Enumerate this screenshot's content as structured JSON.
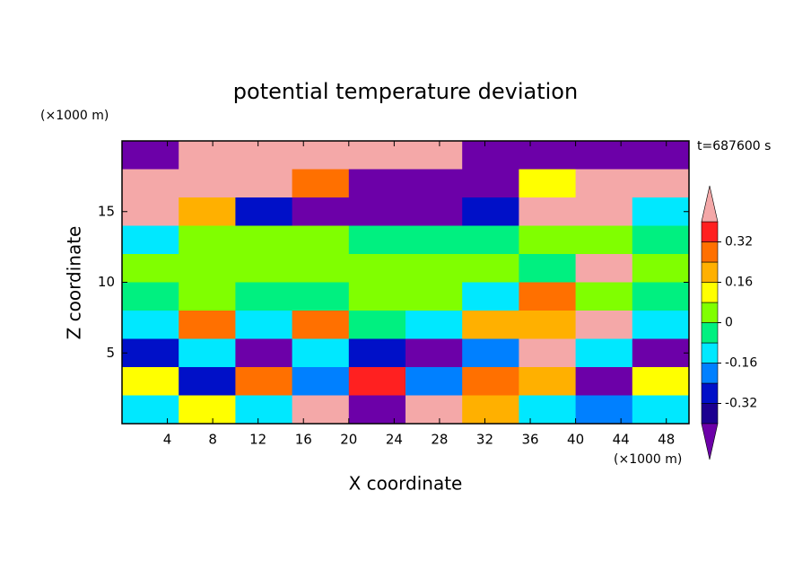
{
  "chart_data": {
    "type": "contour",
    "title": "potential temperature deviation",
    "xlabel": "X coordinate",
    "ylabel": "Z coordinate",
    "x_unit": "(×1000 m)",
    "y_unit": "(×1000 m)",
    "time_label": "t=687600 s",
    "xlim": [
      0,
      50
    ],
    "ylim": [
      0,
      20
    ],
    "xticks": [
      4,
      8,
      12,
      16,
      20,
      24,
      28,
      32,
      36,
      40,
      44,
      48
    ],
    "yticks": [
      5,
      10,
      15
    ],
    "x": [
      2.5,
      7.5,
      12.5,
      17.5,
      22.5,
      27.5,
      32.5,
      37.5,
      42.5,
      47.5
    ],
    "y": [
      19,
      17,
      15,
      13,
      11,
      9,
      7,
      5,
      3,
      1
    ],
    "z": [
      [
        -0.5,
        0.5,
        0.5,
        0.5,
        0.5,
        0.5,
        -0.5,
        -0.5,
        -0.5,
        -0.5
      ],
      [
        0.5,
        0.5,
        0.5,
        0.3,
        -0.5,
        -0.5,
        -0.5,
        0.1,
        0.5,
        0.5
      ],
      [
        0.5,
        0.2,
        -0.3,
        -0.45,
        -0.45,
        -0.45,
        -0.3,
        0.5,
        0.5,
        -0.1
      ],
      [
        -0.1,
        0.02,
        0.02,
        0.02,
        -0.02,
        -0.02,
        -0.02,
        0.02,
        0.02,
        -0.02
      ],
      [
        0.02,
        0.05,
        0.02,
        0.05,
        0.05,
        0.05,
        0.02,
        -0.02,
        0.4,
        0.02
      ],
      [
        -0.05,
        0.02,
        -0.05,
        -0.02,
        0.02,
        0.02,
        -0.1,
        0.3,
        0.02,
        -0.02
      ],
      [
        -0.1,
        0.3,
        -0.1,
        0.3,
        -0.05,
        -0.1,
        0.2,
        0.2,
        0.4,
        -0.1
      ],
      [
        -0.3,
        -0.1,
        -0.45,
        -0.1,
        -0.3,
        -0.45,
        -0.2,
        0.5,
        -0.1,
        -0.45
      ],
      [
        0.1,
        -0.3,
        0.3,
        -0.2,
        0.35,
        -0.2,
        0.3,
        0.2,
        -0.5,
        0.1
      ],
      [
        -0.1,
        0.1,
        -0.1,
        0.4,
        -0.45,
        0.5,
        0.2,
        -0.1,
        -0.2,
        -0.1
      ]
    ],
    "levels": [
      -0.4,
      -0.32,
      -0.24,
      -0.16,
      -0.08,
      0,
      0.08,
      0.16,
      0.24,
      0.32,
      0.4
    ],
    "colors": [
      "#6c00a8",
      "#1c0090",
      "#0010c8",
      "#0080ff",
      "#00e8ff",
      "#00f080",
      "#80ff00",
      "#ffff00",
      "#ffb000",
      "#ff7000",
      "#ff2020",
      "#f4a8a8"
    ],
    "colorbar_ticks": [
      -0.32,
      -0.16,
      0,
      0.16,
      0.32
    ]
  }
}
